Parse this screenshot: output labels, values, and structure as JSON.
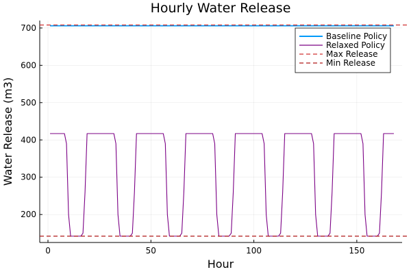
{
  "chart_data": {
    "type": "line",
    "title": "Hourly Water Release",
    "xlabel": "Hour",
    "ylabel": "Water Release (m3)",
    "xlim": [
      -4,
      172
    ],
    "ylim": [
      125,
      720
    ],
    "xticks": [
      0,
      50,
      100,
      150
    ],
    "yticks": [
      200,
      300,
      400,
      500,
      600,
      700
    ],
    "grid": true,
    "legend_position": "top-right",
    "series": [
      {
        "name": "Baseline Policy",
        "color": "#009AFA",
        "style": "solid",
        "x": [
          1,
          168
        ],
        "y": [
          706,
          706
        ]
      },
      {
        "name": "Relaxed Policy",
        "color": "#7B0085",
        "style": "solid",
        "x": [
          1,
          8,
          9,
          10,
          11,
          12,
          16,
          17,
          18,
          19,
          20,
          32,
          33,
          34,
          35,
          36,
          40,
          41,
          42,
          43,
          44,
          56,
          57,
          58,
          59,
          60,
          64,
          65,
          66,
          67,
          68,
          80,
          81,
          82,
          83,
          84,
          88,
          89,
          90,
          91,
          92,
          104,
          105,
          106,
          107,
          108,
          112,
          113,
          114,
          115,
          116,
          128,
          129,
          130,
          131,
          132,
          136,
          137,
          138,
          139,
          140,
          152,
          153,
          154,
          155,
          156,
          160,
          161,
          162,
          163,
          164,
          168
        ],
        "y": [
          417,
          417,
          390,
          200,
          142,
          142,
          142,
          150,
          260,
          417,
          417,
          417,
          390,
          200,
          142,
          142,
          142,
          150,
          260,
          417,
          417,
          417,
          390,
          200,
          142,
          142,
          142,
          150,
          260,
          417,
          417,
          417,
          390,
          200,
          142,
          142,
          142,
          150,
          260,
          417,
          417,
          417,
          390,
          200,
          142,
          142,
          142,
          150,
          260,
          417,
          417,
          417,
          390,
          200,
          142,
          142,
          142,
          150,
          260,
          417,
          417,
          417,
          390,
          200,
          142,
          142,
          142,
          150,
          260,
          417,
          417,
          417
        ]
      },
      {
        "name": "Max Release",
        "color": "#D03030",
        "style": "dashed",
        "hline": 708
      },
      {
        "name": "Min Release",
        "color": "#B01818",
        "style": "dashed",
        "hline": 142
      }
    ]
  }
}
